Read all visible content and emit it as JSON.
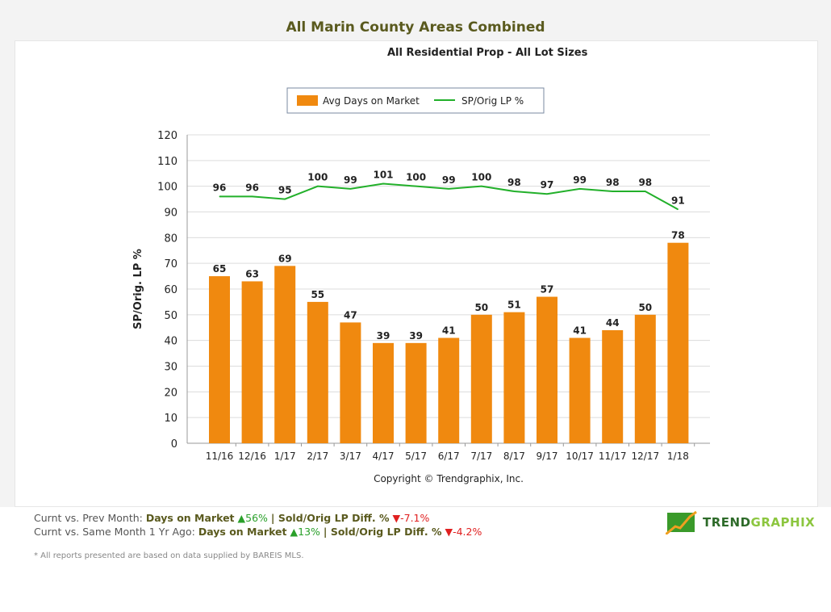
{
  "header": {
    "title": "All Marin County Areas Combined",
    "subtitle": "All Residential Prop - All Lot Sizes"
  },
  "chart_data": {
    "type": "bar+line",
    "categories": [
      "11/16",
      "12/16",
      "1/17",
      "2/17",
      "3/17",
      "4/17",
      "5/17",
      "6/17",
      "7/17",
      "8/17",
      "9/17",
      "10/17",
      "11/17",
      "12/17",
      "1/18"
    ],
    "series": [
      {
        "name": "Avg Days on Market",
        "type": "bar",
        "color": "#f0890f",
        "values": [
          65,
          63,
          69,
          55,
          47,
          39,
          39,
          41,
          50,
          51,
          57,
          41,
          44,
          50,
          78
        ]
      },
      {
        "name": "SP/Orig LP %",
        "type": "line",
        "color": "#22b02a",
        "values": [
          96,
          96,
          95,
          100,
          99,
          101,
          100,
          99,
          100,
          98,
          97,
          99,
          98,
          98,
          91
        ]
      }
    ],
    "ylabel": "SP/Orig. LP %",
    "ylim": [
      0,
      120
    ],
    "yticks": [
      0,
      10,
      20,
      30,
      40,
      50,
      60,
      70,
      80,
      90,
      100,
      110,
      120
    ],
    "grid": true,
    "legend": "top",
    "copyright": "Copyright © Trendgraphix, Inc."
  },
  "footer": {
    "row1": {
      "label": "Curnt vs. Prev Month:",
      "metric1": "Days on Market",
      "value1": "56%",
      "sep": "| Sold/Orig LP Diff. %",
      "value2": "-7.1%"
    },
    "row2": {
      "label": "Curnt vs. Same Month 1 Yr Ago:",
      "metric1": "Days on Market",
      "value1": "13%",
      "sep": "| Sold/Orig LP Diff. %",
      "value2": "-4.2%"
    },
    "note": "* All reports presented are based on data supplied by BAREIS MLS.",
    "logo": {
      "part1": "TREND",
      "part2": "GRAPHIX"
    }
  }
}
